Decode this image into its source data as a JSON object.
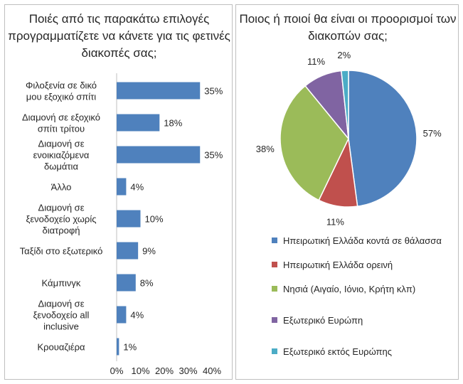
{
  "chart_data": [
    {
      "type": "bar",
      "orientation": "horizontal",
      "title": "Ποιές από τις παρακάτω επιλογές προγραμματίζετε να κάνετε για τις φετινές διακοπές σας;",
      "categories": [
        "Φιλοξενία σε δικό μου εξοχικό σπίτι",
        "Διαμονή σε εξοχικό σπίτι τρίτου",
        "Διαμονή σε ενοικιαζόμενα δωμάτια",
        "Άλλο",
        "Διαμονή σε ξενοδοχείο χωρίς διατροφή",
        "Ταξίδι στο εξωτερικό",
        "Κάμπινγκ",
        "Διαμονή σε ξενοδοχείο all inclusive",
        "Κρουαζιέρα"
      ],
      "values": [
        35,
        18,
        35,
        4,
        10,
        9,
        8,
        4,
        1
      ],
      "value_labels": [
        "35%",
        "18%",
        "35%",
        "4%",
        "10%",
        "9%",
        "8%",
        "4%",
        "1%"
      ],
      "xlim": [
        0,
        40
      ],
      "ticks": [
        "0%",
        "10%",
        "20%",
        "30%",
        "40%"
      ],
      "color": "#4f81bd",
      "grid": false
    },
    {
      "type": "pie",
      "title": "Ποιος ή ποιοί θα είναι οι προορισμοί των διακοπών σας;",
      "labels": [
        "Ηπειρωτική Ελλάδα κοντά σε θάλασσα",
        "Ηπειρωτική Ελλάδα ορεινή",
        "Νησιά (Αιγαίο, Ιόνιο, Κρήτη κλπ)",
        "Εξωτερικό Ευρώπη",
        "Εξωτερικό εκτός Ευρώπης"
      ],
      "values": [
        57,
        11,
        38,
        11,
        2
      ],
      "value_labels": [
        "57%",
        "11%",
        "38%",
        "11%",
        "2%"
      ],
      "colors": [
        "#4f81bd",
        "#c0504d",
        "#9bbb59",
        "#8064a2",
        "#4bacc6"
      ],
      "legend": "bottom"
    }
  ]
}
